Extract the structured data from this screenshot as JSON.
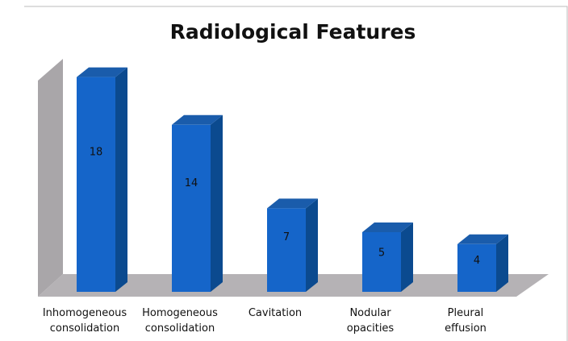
{
  "chart_data": {
    "type": "bar3d",
    "title": "Radiological Features",
    "categories": [
      "Inhomogeneous consolidation",
      "Homogeneous consolidation",
      "Cavitation",
      "Nodular opacities",
      "Pleural effusion"
    ],
    "values": [
      18,
      14,
      7,
      5,
      4
    ],
    "color": "#1565c9"
  }
}
